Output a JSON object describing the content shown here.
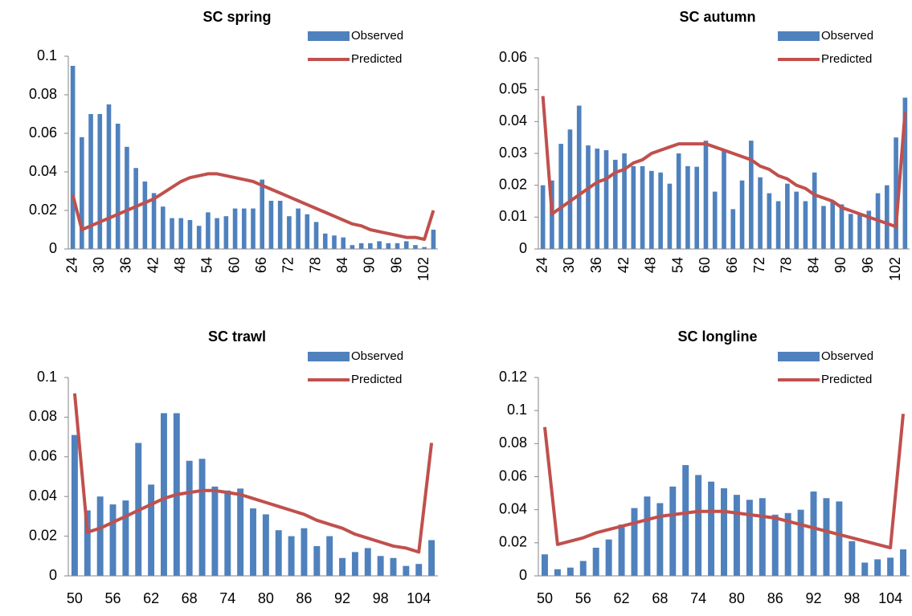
{
  "chart_data": [
    {
      "type": "bar",
      "title": "SC spring",
      "legend": "top-right",
      "grid": false,
      "categories": [
        "24",
        null,
        null,
        "30",
        null,
        null,
        "36",
        null,
        null,
        "42",
        null,
        null,
        "48",
        null,
        null,
        "54",
        null,
        null,
        "60",
        null,
        null,
        "66",
        null,
        null,
        "72",
        null,
        null,
        "78",
        null,
        null,
        "84",
        null,
        null,
        "90",
        null,
        null,
        "96",
        null,
        null,
        "102",
        null
      ],
      "ylim": [
        0,
        0.1
      ],
      "yticks": [
        0,
        0.02,
        0.04,
        0.06,
        0.08,
        0.1
      ],
      "series": [
        {
          "name": "Observed",
          "type": "bar",
          "color": "#4f81bd",
          "values": [
            0.095,
            0.058,
            0.07,
            0.07,
            0.075,
            0.065,
            0.053,
            0.042,
            0.035,
            0.029,
            0.022,
            0.016,
            0.016,
            0.015,
            0.012,
            0.019,
            0.016,
            0.017,
            0.021,
            0.021,
            0.021,
            0.036,
            0.025,
            0.025,
            0.017,
            0.021,
            0.018,
            0.014,
            0.008,
            0.007,
            0.006,
            0.002,
            0.003,
            0.003,
            0.004,
            0.003,
            0.003,
            0.004,
            0.002,
            0.001,
            0.01
          ]
        },
        {
          "name": "Predicted",
          "type": "line",
          "color": "#c0504d",
          "values": [
            0.028,
            0.01,
            0.012,
            0.014,
            0.016,
            0.018,
            0.02,
            0.022,
            0.024,
            0.026,
            0.029,
            0.032,
            0.035,
            0.037,
            0.038,
            0.039,
            0.039,
            0.038,
            0.037,
            0.036,
            0.035,
            0.033,
            0.031,
            0.029,
            0.027,
            0.025,
            0.023,
            0.021,
            0.019,
            0.017,
            0.015,
            0.013,
            0.012,
            0.01,
            0.009,
            0.008,
            0.007,
            0.006,
            0.006,
            0.005,
            0.02
          ]
        }
      ]
    },
    {
      "type": "bar",
      "title": "SC autumn",
      "legend": "top-right",
      "grid": false,
      "categories": [
        "24",
        null,
        null,
        "30",
        null,
        null,
        "36",
        null,
        null,
        "42",
        null,
        null,
        "48",
        null,
        null,
        "54",
        null,
        null,
        "60",
        null,
        null,
        "66",
        null,
        null,
        "72",
        null,
        null,
        "78",
        null,
        null,
        "84",
        null,
        null,
        "90",
        null,
        null,
        "96",
        null,
        null,
        "102",
        null
      ],
      "ylim": [
        0,
        0.06
      ],
      "yticks": [
        0,
        0.01,
        0.02,
        0.03,
        0.04,
        0.05,
        0.06
      ],
      "series": [
        {
          "name": "Observed",
          "type": "bar",
          "color": "#4f81bd",
          "values": [
            0.02,
            0.0215,
            0.033,
            0.0375,
            0.045,
            0.0325,
            0.0315,
            0.031,
            0.028,
            0.03,
            0.026,
            0.026,
            0.0245,
            0.024,
            0.0205,
            0.03,
            0.026,
            0.0258,
            0.034,
            0.018,
            0.031,
            0.0125,
            0.0215,
            0.034,
            0.0225,
            0.0175,
            0.015,
            0.0205,
            0.018,
            0.015,
            0.024,
            0.0135,
            0.015,
            0.014,
            0.011,
            0.011,
            0.012,
            0.0175,
            0.02,
            0.035,
            0.0475
          ]
        },
        {
          "name": "Predicted",
          "type": "line",
          "color": "#c0504d",
          "values": [
            0.048,
            0.011,
            0.013,
            0.015,
            0.017,
            0.019,
            0.021,
            0.022,
            0.024,
            0.025,
            0.027,
            0.028,
            0.03,
            0.031,
            0.032,
            0.033,
            0.033,
            0.033,
            0.033,
            0.032,
            0.031,
            0.03,
            0.029,
            0.028,
            0.026,
            0.025,
            0.023,
            0.022,
            0.02,
            0.019,
            0.017,
            0.016,
            0.015,
            0.013,
            0.012,
            0.011,
            0.01,
            0.009,
            0.008,
            0.007,
            0.043
          ]
        }
      ]
    },
    {
      "type": "bar",
      "title": "SC trawl",
      "legend": "top-right",
      "grid": false,
      "categories": [
        "50",
        null,
        null,
        "56",
        null,
        null,
        "62",
        null,
        null,
        "68",
        null,
        null,
        "74",
        null,
        null,
        "80",
        null,
        null,
        "86",
        null,
        null,
        "92",
        null,
        null,
        "98",
        null,
        null,
        "104",
        null
      ],
      "ylim": [
        0,
        0.1
      ],
      "yticks": [
        0,
        0.02,
        0.04,
        0.06,
        0.08,
        0.1
      ],
      "series": [
        {
          "name": "Observed",
          "type": "bar",
          "color": "#4f81bd",
          "values": [
            0.071,
            0.033,
            0.04,
            0.036,
            0.038,
            0.067,
            0.046,
            0.082,
            0.082,
            0.058,
            0.059,
            0.045,
            0.043,
            0.044,
            0.034,
            0.031,
            0.023,
            0.02,
            0.024,
            0.015,
            0.02,
            0.009,
            0.012,
            0.014,
            0.01,
            0.009,
            0.005,
            0.006,
            0.018
          ]
        },
        {
          "name": "Predicted",
          "type": "line",
          "color": "#c0504d",
          "values": [
            0.092,
            0.022,
            0.024,
            0.027,
            0.03,
            0.033,
            0.036,
            0.039,
            0.041,
            0.042,
            0.043,
            0.043,
            0.042,
            0.041,
            0.039,
            0.037,
            0.035,
            0.033,
            0.031,
            0.028,
            0.026,
            0.024,
            0.021,
            0.019,
            0.017,
            0.015,
            0.014,
            0.012,
            0.067
          ]
        }
      ]
    },
    {
      "type": "bar",
      "title": "SC longline",
      "legend": "top-right",
      "grid": false,
      "categories": [
        "50",
        null,
        null,
        "56",
        null,
        null,
        "62",
        null,
        null,
        "68",
        null,
        null,
        "74",
        null,
        null,
        "80",
        null,
        null,
        "86",
        null,
        null,
        "92",
        null,
        null,
        "98",
        null,
        null,
        "104",
        null
      ],
      "ylim": [
        0,
        0.12
      ],
      "yticks": [
        0,
        0.02,
        0.04,
        0.06,
        0.08,
        0.1,
        0.12
      ],
      "series": [
        {
          "name": "Observed",
          "type": "bar",
          "color": "#4f81bd",
          "values": [
            0.013,
            0.004,
            0.005,
            0.009,
            0.017,
            0.022,
            0.031,
            0.041,
            0.048,
            0.044,
            0.054,
            0.067,
            0.061,
            0.057,
            0.053,
            0.049,
            0.046,
            0.047,
            0.037,
            0.038,
            0.04,
            0.051,
            0.047,
            0.045,
            0.021,
            0.008,
            0.01,
            0.011,
            0.016
          ]
        },
        {
          "name": "Predicted",
          "type": "line",
          "color": "#c0504d",
          "values": [
            0.09,
            0.019,
            0.021,
            0.023,
            0.026,
            0.028,
            0.03,
            0.032,
            0.034,
            0.036,
            0.037,
            0.038,
            0.039,
            0.039,
            0.039,
            0.038,
            0.037,
            0.036,
            0.035,
            0.033,
            0.031,
            0.029,
            0.027,
            0.025,
            0.023,
            0.021,
            0.019,
            0.017,
            0.098
          ]
        }
      ]
    }
  ]
}
